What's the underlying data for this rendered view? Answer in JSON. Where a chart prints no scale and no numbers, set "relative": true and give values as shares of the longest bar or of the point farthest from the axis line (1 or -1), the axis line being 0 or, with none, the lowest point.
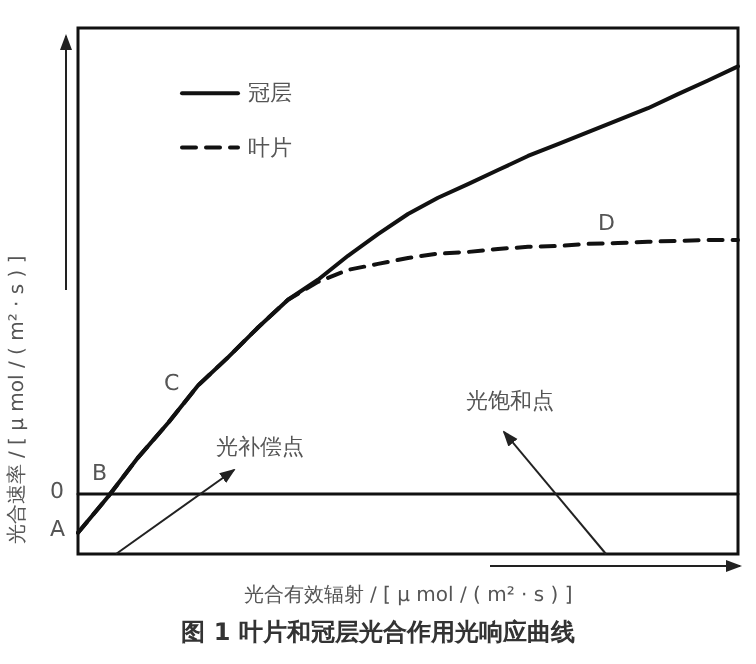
{
  "chart_data": {
    "type": "line",
    "title": "图 1 叶片和冠层光合作用光响应曲线",
    "xlabel": "光合有效辐射 / [ μ mol / ( m² · s ) ]",
    "ylabel": "光合速率 / [ μ mol / ( m² · s ) ]",
    "relative": true,
    "legend": "top left",
    "marker": "none",
    "grid": false,
    "categories": [
      null,
      null,
      null,
      null,
      null,
      null,
      null,
      null,
      null,
      null,
      null,
      null,
      null,
      null,
      null,
      null,
      null,
      null,
      null,
      null,
      null,
      null,
      null
    ],
    "series": [
      {
        "name": "冠层",
        "color": "#111111",
        "line_style": "solid",
        "values": [
          -0.093,
          -0.009,
          0.083,
          0.164,
          0.252,
          0.318,
          0.388,
          0.453,
          0.5,
          0.556,
          0.607,
          0.654,
          0.692,
          0.724,
          0.757,
          0.79,
          0.818,
          0.846,
          0.874,
          0.902,
          0.935,
          0.967,
          1
        ]
      },
      {
        "name": "叶片",
        "color": "#111111",
        "line_style": "dashed",
        "values": [
          -0.093,
          -0.009,
          0.083,
          0.164,
          0.252,
          0.318,
          0.388,
          0.453,
          0.495,
          0.523,
          0.537,
          0.551,
          0.561,
          0.565,
          0.572,
          0.577,
          0.579,
          0.584,
          0.586,
          0.589,
          0.591,
          0.593,
          0.593
        ]
      }
    ],
    "annotations": [
      "0",
      "A",
      "B",
      "C",
      "D",
      "光补偿点",
      "光饱和点"
    ]
  }
}
